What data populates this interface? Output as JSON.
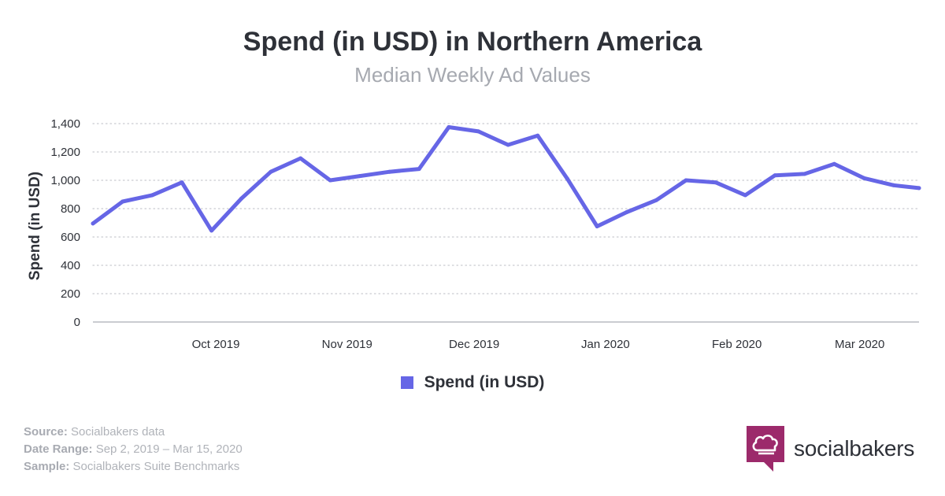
{
  "header": {
    "title": "Spend (in USD) in Northern America",
    "subtitle": "Median Weekly Ad Values"
  },
  "chart_data": {
    "type": "line",
    "title": "Spend (in USD) in Northern America",
    "subtitle": "Median Weekly Ad Values",
    "ylabel": "Spend (in USD)",
    "xlabel": "",
    "ylim": [
      0,
      1400
    ],
    "yticks": [
      0,
      200,
      400,
      600,
      800,
      1000,
      1200,
      1400
    ],
    "ytick_labels": [
      "0",
      "200",
      "400",
      "600",
      "800",
      "1,000",
      "1,200",
      "1,400"
    ],
    "xlim": [
      "2019-09-02",
      "2020-03-15"
    ],
    "xticks": [
      {
        "date": "2019-10-01",
        "label": "Oct 2019"
      },
      {
        "date": "2019-11-01",
        "label": "Nov 2019"
      },
      {
        "date": "2019-12-01",
        "label": "Dec 2019"
      },
      {
        "date": "2020-01-01",
        "label": "Jan 2020"
      },
      {
        "date": "2020-02-01",
        "label": "Feb 2020"
      },
      {
        "date": "2020-03-01",
        "label": "Mar 2020"
      }
    ],
    "grid": "horizontal dotted",
    "legend_position": "bottom",
    "series": [
      {
        "name": "Spend (in USD)",
        "color": "#6666e6",
        "x": [
          "2019-09-02",
          "2019-09-09",
          "2019-09-16",
          "2019-09-23",
          "2019-09-30",
          "2019-10-07",
          "2019-10-14",
          "2019-10-21",
          "2019-10-28",
          "2019-11-04",
          "2019-11-11",
          "2019-11-18",
          "2019-11-25",
          "2019-12-02",
          "2019-12-09",
          "2019-12-16",
          "2019-12-23",
          "2019-12-30",
          "2020-01-06",
          "2020-01-13",
          "2020-01-20",
          "2020-01-27",
          "2020-02-03",
          "2020-02-10",
          "2020-02-17",
          "2020-02-24",
          "2020-03-02",
          "2020-03-09",
          "2020-03-15"
        ],
        "values": [
          695,
          850,
          895,
          985,
          645,
          870,
          1060,
          1155,
          1000,
          1030,
          1060,
          1080,
          1375,
          1345,
          1250,
          1315,
          1010,
          675,
          775,
          860,
          1000,
          985,
          895,
          1035,
          1045,
          1115,
          1015,
          965,
          945
        ]
      }
    ]
  },
  "legend": {
    "label": "Spend (in USD)",
    "color": "#6666e6"
  },
  "footer": {
    "source_label": "Source:",
    "source_value": " Socialbakers data",
    "range_label": "Date Range:",
    "range_value": " Sep 2, 2019 – Mar 15, 2020",
    "sample_label": "Sample:",
    "sample_value": " Socialbakers Suite Benchmarks"
  },
  "brand": {
    "name": "socialbakers",
    "logo_icon": "chef-hat-speech-bubble-icon",
    "logo_color": "#9c2a6b"
  }
}
